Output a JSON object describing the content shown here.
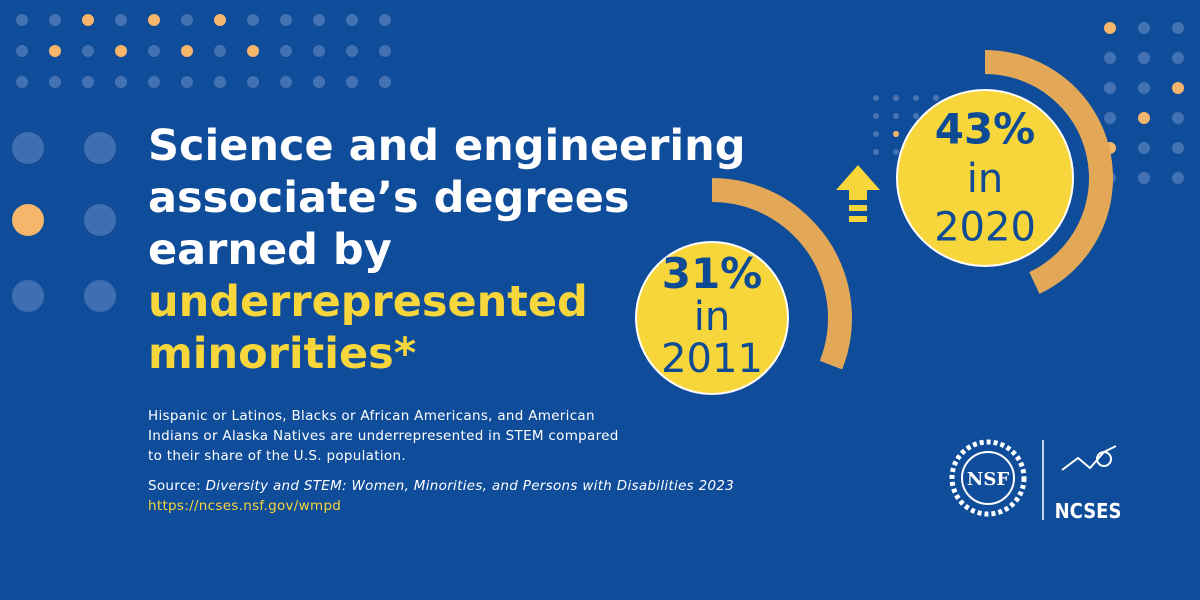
{
  "headline": {
    "lines": [
      "Science and engineering",
      "associate’s degrees",
      "earned by"
    ],
    "highlight_lines": [
      "underrepresented",
      "minorities*"
    ]
  },
  "stats": [
    {
      "value": 31,
      "value_label": "31%",
      "connector": "in",
      "year": "2011"
    },
    {
      "value": 43,
      "value_label": "43%",
      "connector": "in",
      "year": "2020"
    }
  ],
  "footnote": [
    "Hispanic or Latinos, Blacks or African Americans, and American",
    "Indians or Alaska Natives are underrepresented in STEM compared",
    "to their share of the U.S. population."
  ],
  "source": {
    "prefix": "Source:",
    "title": "Diversity and STEM: Women, Minorities, and Persons with Disabilities 2023",
    "url": "https://ncses.nsf.gov/wmpd"
  },
  "logos": {
    "nsf": "NSF",
    "ncses": "NCSES"
  }
}
